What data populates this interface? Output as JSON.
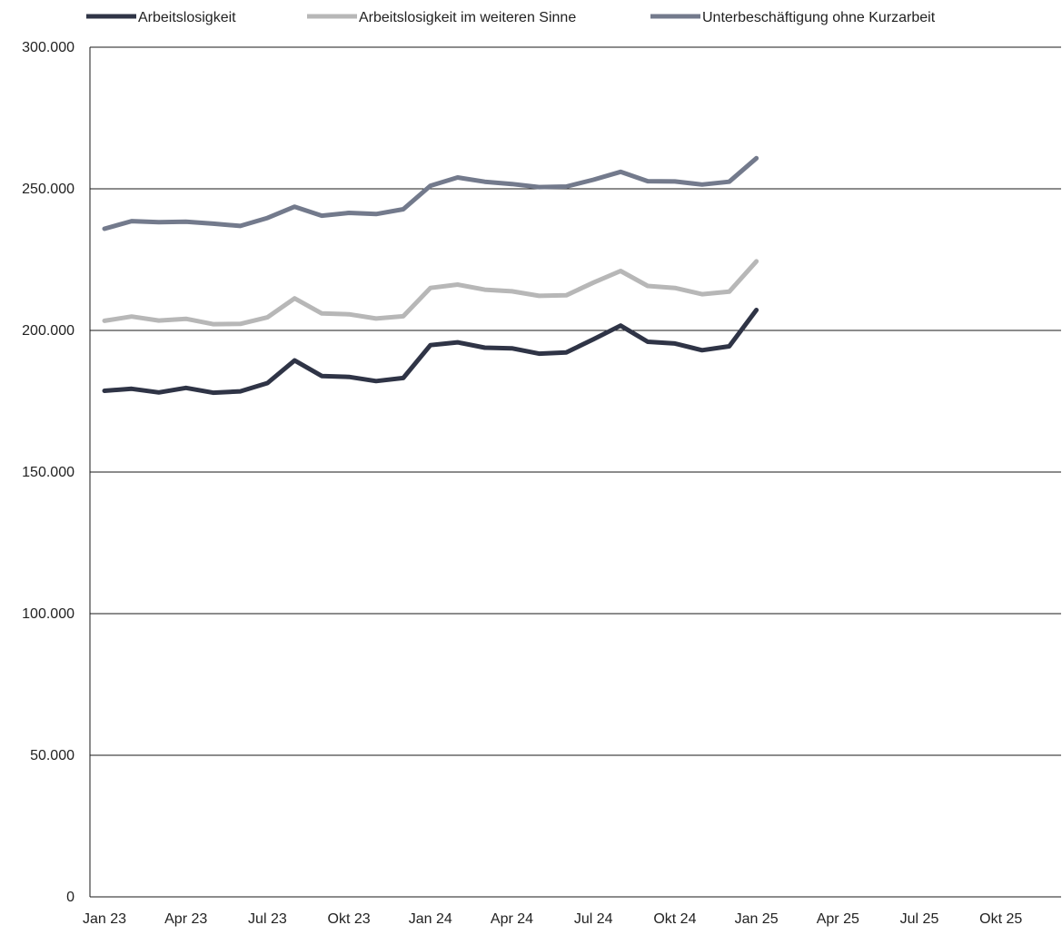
{
  "chart_data": {
    "type": "line",
    "title": "",
    "xlabel": "",
    "ylabel": "",
    "ylim": [
      0,
      300000
    ],
    "y_ticks": [
      0,
      50000,
      100000,
      150000,
      200000,
      250000,
      300000
    ],
    "y_tick_labels": [
      "0",
      "50.000",
      "100.000",
      "150.000",
      "200.000",
      "250.000",
      "300.000"
    ],
    "x_ticks": [
      "Jan 23",
      "Apr 23",
      "Jul 23",
      "Okt 23",
      "Jan 24",
      "Apr 24",
      "Jul 24",
      "Okt 24",
      "Jan 25",
      "Apr 25",
      "Jul 25",
      "Okt 25"
    ],
    "x_range": [
      "Jan 23",
      "Dez 25"
    ],
    "months": [
      "Jan 23",
      "Feb 23",
      "Mär 23",
      "Apr 23",
      "Mai 23",
      "Jun 23",
      "Jul 23",
      "Aug 23",
      "Sep 23",
      "Okt 23",
      "Nov 23",
      "Dez 23",
      "Jan 24",
      "Feb 24",
      "Mär 24",
      "Apr 24",
      "Mai 24",
      "Jun 24",
      "Jul 24",
      "Aug 24",
      "Sep 24",
      "Okt 24",
      "Nov 24",
      "Dez 24",
      "Jan 25"
    ],
    "grid": "horizontal",
    "legend_position": "top",
    "series": [
      {
        "name": "Arbeitslosigkeit",
        "color": "#2f3446",
        "values": [
          178700,
          179400,
          178100,
          179700,
          178000,
          178500,
          181400,
          189400,
          183900,
          183600,
          182100,
          183200,
          194800,
          195800,
          193900,
          193700,
          191800,
          192200,
          196900,
          201700,
          196000,
          195400,
          193000,
          194400,
          207200
        ]
      },
      {
        "name": "Arbeitslosigkeit im weiteren Sinne",
        "color": "#b7b7b7",
        "values": [
          203400,
          204900,
          203500,
          204100,
          202200,
          202300,
          204600,
          211300,
          206000,
          205700,
          204200,
          205000,
          215000,
          216200,
          214400,
          213800,
          212200,
          212400,
          216900,
          221000,
          215700,
          215000,
          212800,
          213700,
          224400
        ]
      },
      {
        "name": "Unterbeschäftigung ohne Kurzarbeit",
        "color": "#737a8c",
        "values": [
          235900,
          238600,
          238200,
          238400,
          237700,
          236900,
          239700,
          243700,
          240500,
          241500,
          241100,
          242800,
          251100,
          254000,
          252500,
          251700,
          250600,
          250800,
          253200,
          256000,
          252700,
          252600,
          251500,
          252500,
          260800
        ]
      }
    ]
  }
}
